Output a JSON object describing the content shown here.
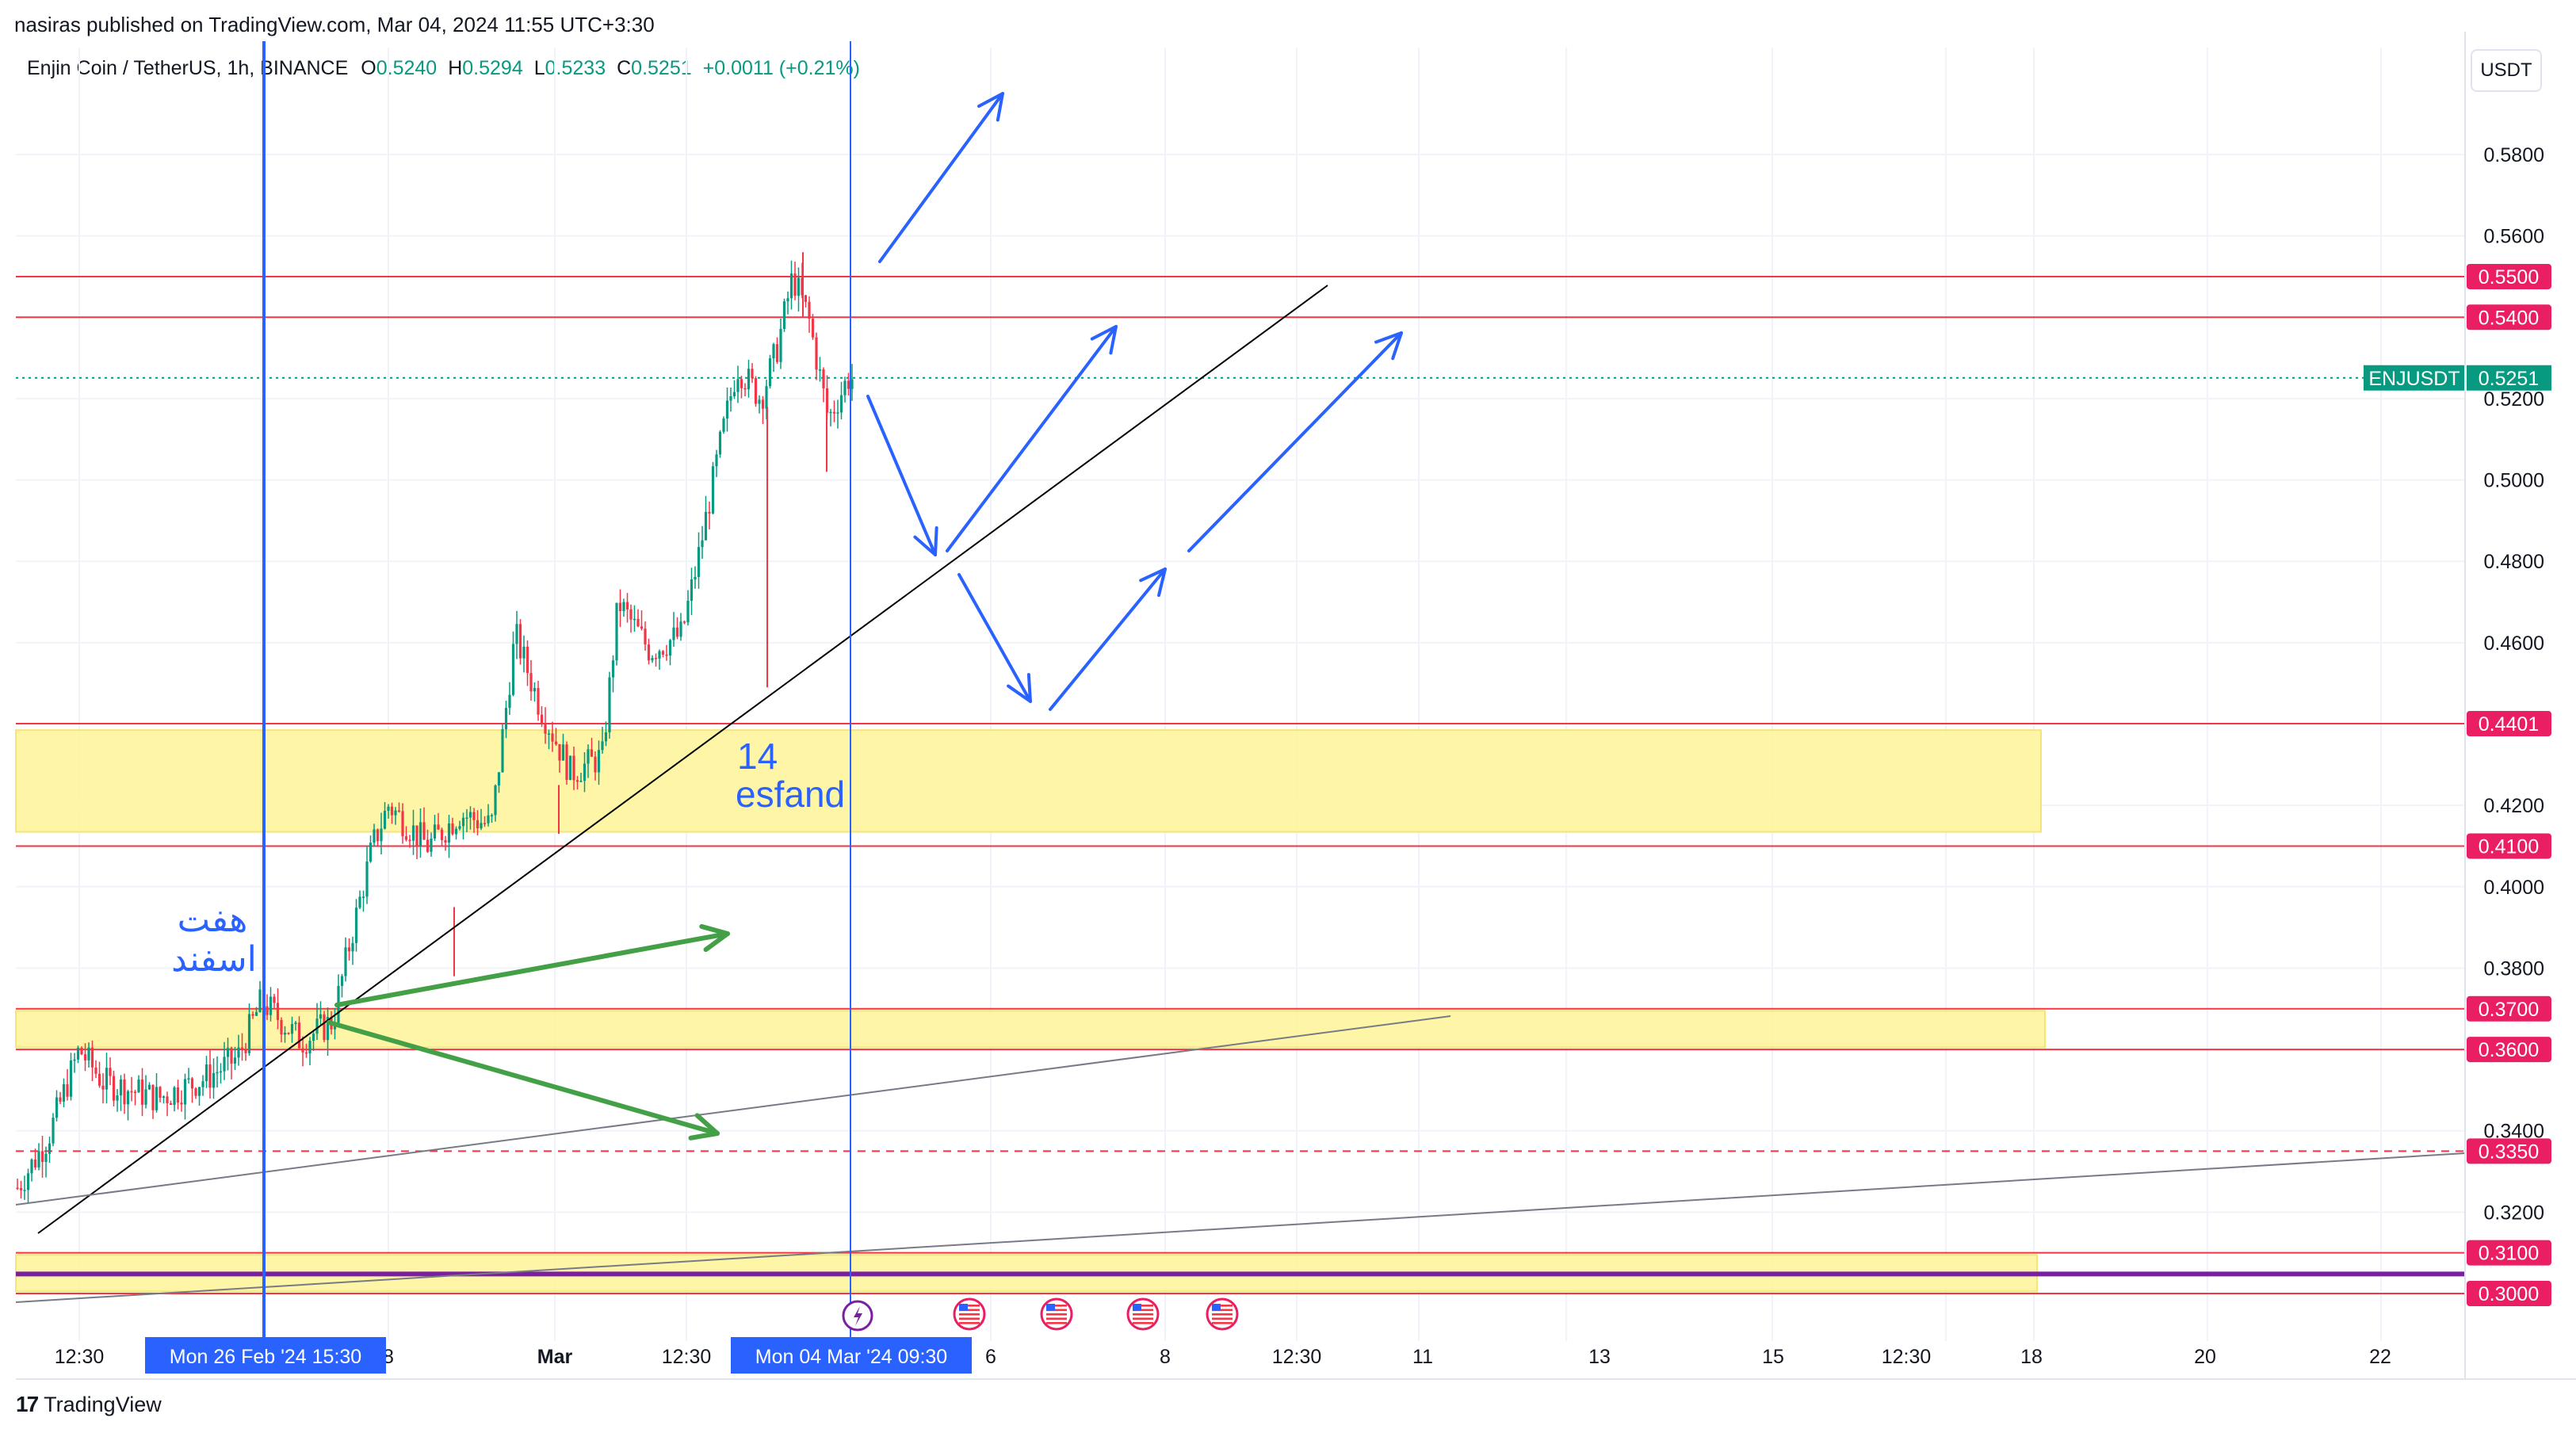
{
  "header": {
    "caption": "nasiras published on TradingView.com, Mar 04, 2024 11:55 UTC+3:30",
    "symbol": "Enjin Coin / TetherUS, 1h, BINANCE",
    "ohlc": [
      {
        "k": "O",
        "v": "0.5240"
      },
      {
        "k": "H",
        "v": "0.5294"
      },
      {
        "k": "L",
        "v": "0.5233"
      },
      {
        "k": "C",
        "v": "0.5251"
      }
    ],
    "change": "+0.0011 (+0.21%)",
    "currency_button": "USDT"
  },
  "footer": {
    "brand": "TradingView",
    "logo_glyph": "17"
  },
  "colors": {
    "up": "#089981",
    "down": "#f23645",
    "level_line": "#f23645",
    "level_badge": "#e91e63",
    "zone_fill": "#fff59d",
    "blue": "#2962ff",
    "green": "#43a047",
    "purple": "#7b1fa2",
    "price_badge": "#089981"
  },
  "chart_data": {
    "type": "candlestick",
    "symbol": "ENJUSDT",
    "timeframe": "1h",
    "y_axis": {
      "ticks": [
        "0.5800",
        "0.5600",
        "0.5200",
        "0.5000",
        "0.4800",
        "0.4600",
        "0.4200",
        "0.4000",
        "0.3800",
        "0.3400",
        "0.3200"
      ],
      "range": [
        0.295,
        0.59
      ]
    },
    "x_axis": {
      "ticks": [
        "12:30",
        "8",
        "Mar",
        "12:30",
        "6",
        "8",
        "12:30",
        "11",
        "13",
        "15",
        "12:30",
        "18",
        "20",
        "22"
      ]
    },
    "current_price": {
      "label": "ENJUSDT",
      "value": "0.5251"
    },
    "price_levels": [
      "0.5500",
      "0.5400",
      "0.4401",
      "0.4100",
      "0.3700",
      "0.3600",
      "0.3350",
      "0.3100",
      "0.3000"
    ],
    "zones": [
      {
        "from": 0.4135,
        "to": 0.4385
      },
      {
        "from": 0.3605,
        "to": 0.3695
      },
      {
        "from": 0.3005,
        "to": 0.3095
      }
    ],
    "vertical_markers": [
      {
        "label": "Mon 26 Feb '24   15:30"
      },
      {
        "label": "Mon 04 Mar '24   09:30"
      }
    ],
    "annotations": [
      {
        "text": "14",
        "color": "#2962ff"
      },
      {
        "text": "esfand",
        "color": "#2962ff"
      },
      {
        "text": "هفت",
        "color": "#2962ff"
      },
      {
        "text": "اسفند",
        "color": "#2962ff"
      }
    ],
    "candles_summary": {
      "start_close": 0.332,
      "end_close": 0.5251,
      "high": 0.5566,
      "low": 0.325
    }
  }
}
